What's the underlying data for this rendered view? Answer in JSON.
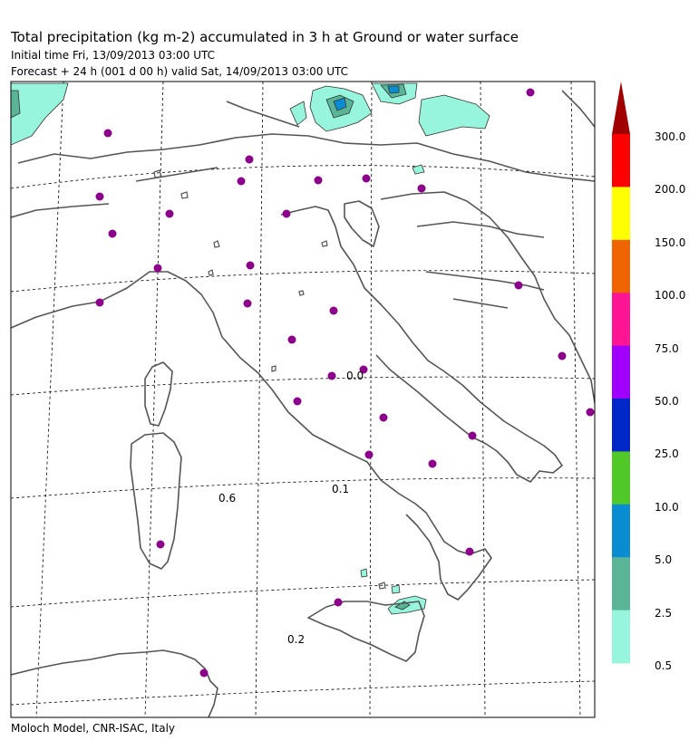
{
  "header": {
    "title": "Total precipitation (kg m-2) accumulated in   3 h at Ground or water surface",
    "initial_time": "Initial time  Fri, 13/09/2013  03:00 UTC",
    "forecast": "Forecast  +  24 h  (001 d 00 h)  valid Sat, 14/09/2013 03:00 UTC"
  },
  "footer": "Moloch Model, CNR-ISAC, Italy",
  "map_labels": {
    "adriatic": "0.0",
    "tyrrhenian": "0.1",
    "sardinia_west": "0.6",
    "sicily_channel": "0.2"
  },
  "colorbar": {
    "labels": [
      "300.0",
      "200.0",
      "150.0",
      "100.0",
      "75.0",
      "50.0",
      "25.0",
      "10.0",
      "5.0",
      "2.5",
      "0.5"
    ],
    "colors": [
      "#b40000",
      "#ff0000",
      "#ffff00",
      "#f06400",
      "#ff1493",
      "#a000ff",
      "#0028c8",
      "#50c828",
      "#0a8cd2",
      "#5ab496",
      "#96f5dc"
    ],
    "top_arrow_color": "#a00000"
  },
  "colors": {
    "station_dot": "#8c008c",
    "coastline": "#555555",
    "precip_light": "#96f5dc",
    "precip_medium": "#5ab496",
    "precip_heavy": "#0a8cd2"
  }
}
